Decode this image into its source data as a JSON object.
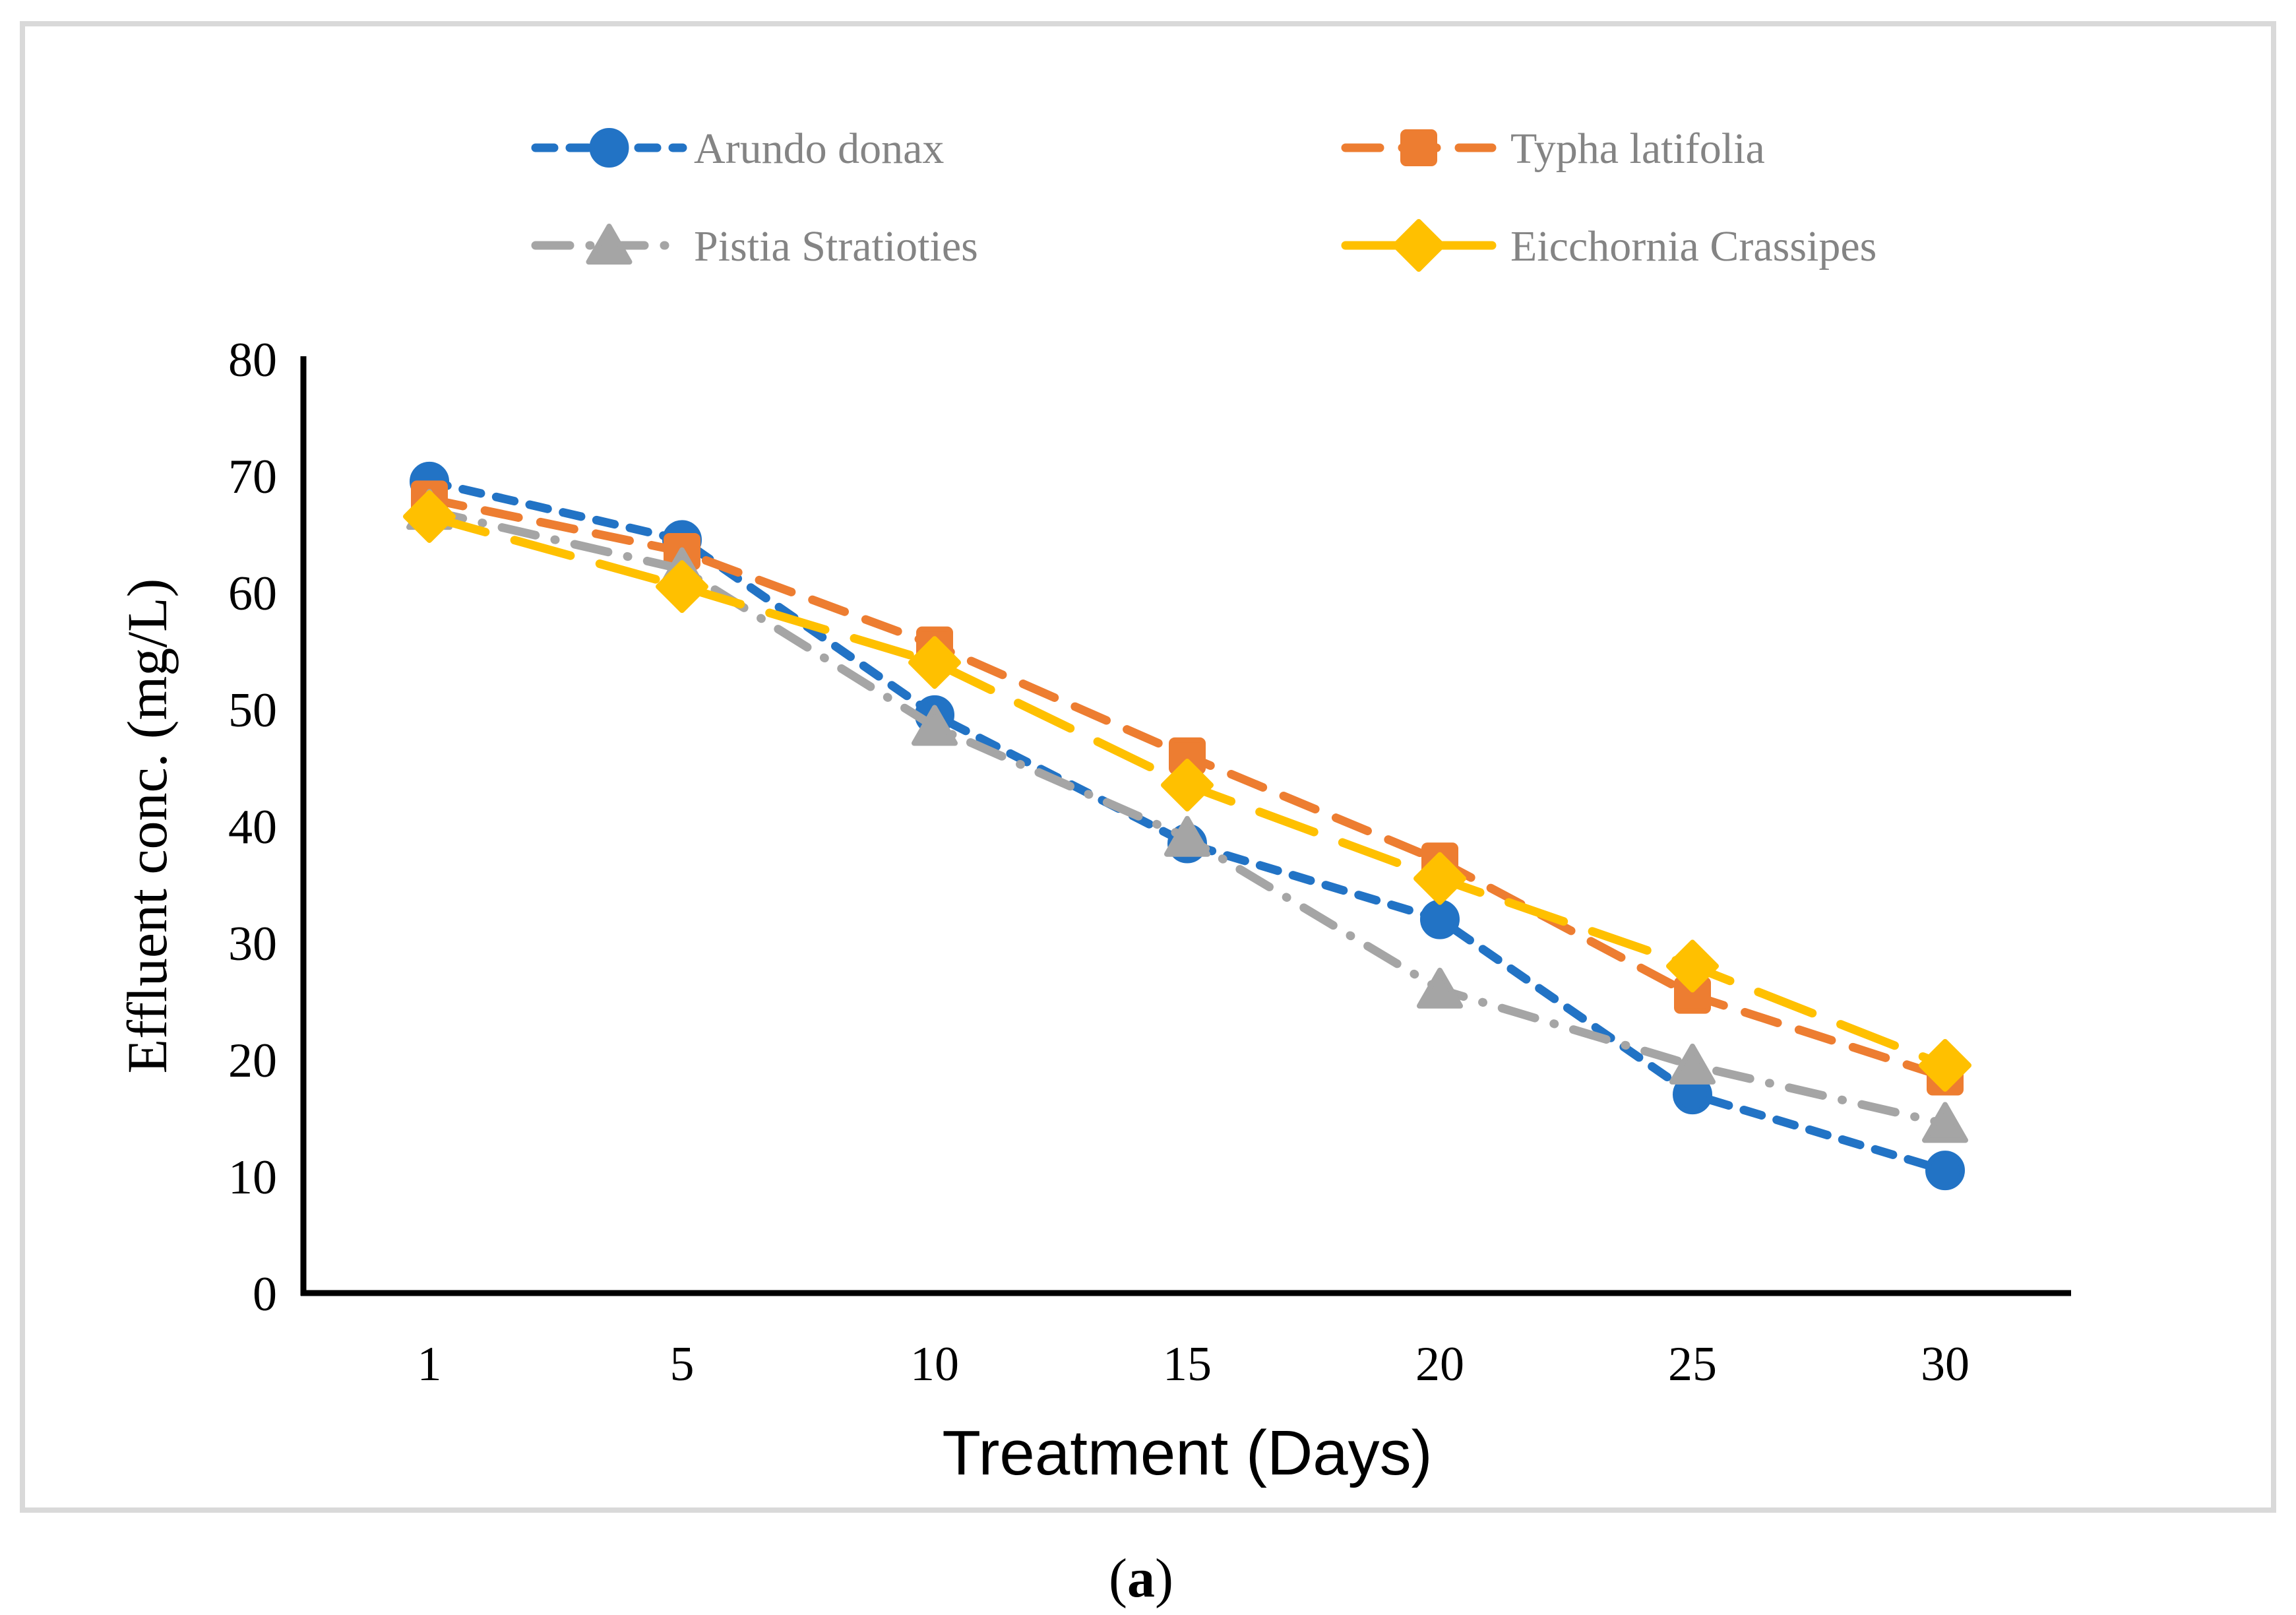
{
  "figure": {
    "border_color": "#D9D9D9",
    "background_color": "#FFFFFF",
    "axis_color": "#000000",
    "legend_text_color": "#848484",
    "caption": {
      "open": "(",
      "letter": "a",
      "close": ")"
    }
  },
  "chart_data": {
    "type": "line",
    "title": "",
    "xlabel": "Treatment (Days)",
    "ylabel": "Effluent conc. (mg/L)",
    "x_categories": [
      "1",
      "5",
      "10",
      "15",
      "20",
      "25",
      "30"
    ],
    "y_ticks": [
      0,
      10,
      20,
      30,
      40,
      50,
      60,
      70,
      80
    ],
    "ylim": [
      0,
      80
    ],
    "grid": false,
    "legend_position": "top-two-columns",
    "series": [
      {
        "name": "Arundo donax",
        "color": "#2273C5",
        "marker": "circle",
        "dash": "short-dash",
        "values": [
          69.5,
          64.5,
          49.5,
          38.5,
          32,
          17,
          10.5
        ]
      },
      {
        "name": "Typha latifolia",
        "color": "#ED7D31",
        "marker": "square",
        "dash": "dash",
        "values": [
          68,
          63.5,
          55.5,
          46,
          37,
          25.5,
          18.5
        ]
      },
      {
        "name": "Pistia Stratioties",
        "color": "#A5A5A5",
        "marker": "triangle",
        "dash": "dash-dot",
        "values": [
          67,
          62,
          48.5,
          39,
          26,
          19.5,
          14.5
        ]
      },
      {
        "name": "Eicchornia Crassipes",
        "color": "#FFC000",
        "marker": "diamond",
        "dash": "long-dash",
        "values": [
          66.5,
          60.5,
          54,
          43.5,
          35.5,
          28,
          19.5
        ]
      }
    ]
  }
}
